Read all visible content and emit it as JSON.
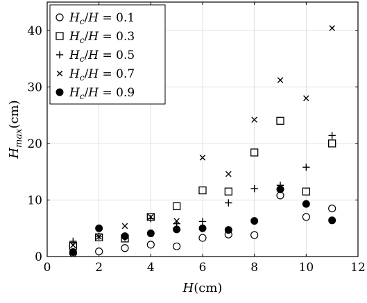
{
  "chart_data": {
    "type": "scatter",
    "title": "",
    "xlabel": "H(cm)",
    "ylabel": "H_max(cm)",
    "xlim": [
      0,
      12
    ],
    "ylim": [
      0,
      45
    ],
    "x_ticks": [
      0,
      2,
      4,
      6,
      8,
      10,
      12
    ],
    "y_ticks": [
      0,
      10,
      20,
      30,
      40
    ],
    "grid": true,
    "legend_position": "top-left",
    "series": [
      {
        "name": "H_c/H = 0.1",
        "marker": "circle-open",
        "x": [
          1,
          2,
          3,
          4,
          5,
          6,
          7,
          8,
          9,
          10,
          11
        ],
        "y": [
          0.6,
          0.9,
          1.5,
          2.1,
          1.8,
          3.3,
          3.9,
          3.8,
          10.8,
          7.0,
          8.5
        ]
      },
      {
        "name": "H_c/H = 0.3",
        "marker": "square-open",
        "x": [
          1,
          2,
          3,
          4,
          5,
          6,
          7,
          8,
          9,
          10,
          11
        ],
        "y": [
          1.9,
          3.4,
          3.2,
          7.0,
          8.9,
          11.7,
          11.5,
          18.4,
          24.0,
          11.5,
          20.0
        ]
      },
      {
        "name": "H_c/H = 0.5",
        "marker": "plus",
        "x": [
          1,
          2,
          3,
          4,
          5,
          6,
          7,
          8,
          9,
          10,
          11
        ],
        "y": [
          2.7,
          3.6,
          3.4,
          6.7,
          5.8,
          6.2,
          9.5,
          12.0,
          12.6,
          15.8,
          21.4
        ]
      },
      {
        "name": "H_c/H = 0.7",
        "marker": "cross",
        "x": [
          1,
          2,
          3,
          4,
          5,
          6,
          7,
          8,
          9,
          10,
          11
        ],
        "y": [
          2.0,
          3.5,
          5.4,
          7.0,
          6.3,
          17.5,
          14.6,
          24.2,
          31.2,
          28.0,
          40.4
        ]
      },
      {
        "name": "H_c/H = 0.9",
        "marker": "circle-filled",
        "x": [
          1,
          2,
          3,
          4,
          5,
          6,
          7,
          8,
          9,
          10,
          11
        ],
        "y": [
          0.8,
          5.0,
          3.6,
          4.1,
          4.8,
          5.0,
          4.7,
          6.3,
          11.9,
          9.3,
          6.4
        ]
      }
    ]
  }
}
